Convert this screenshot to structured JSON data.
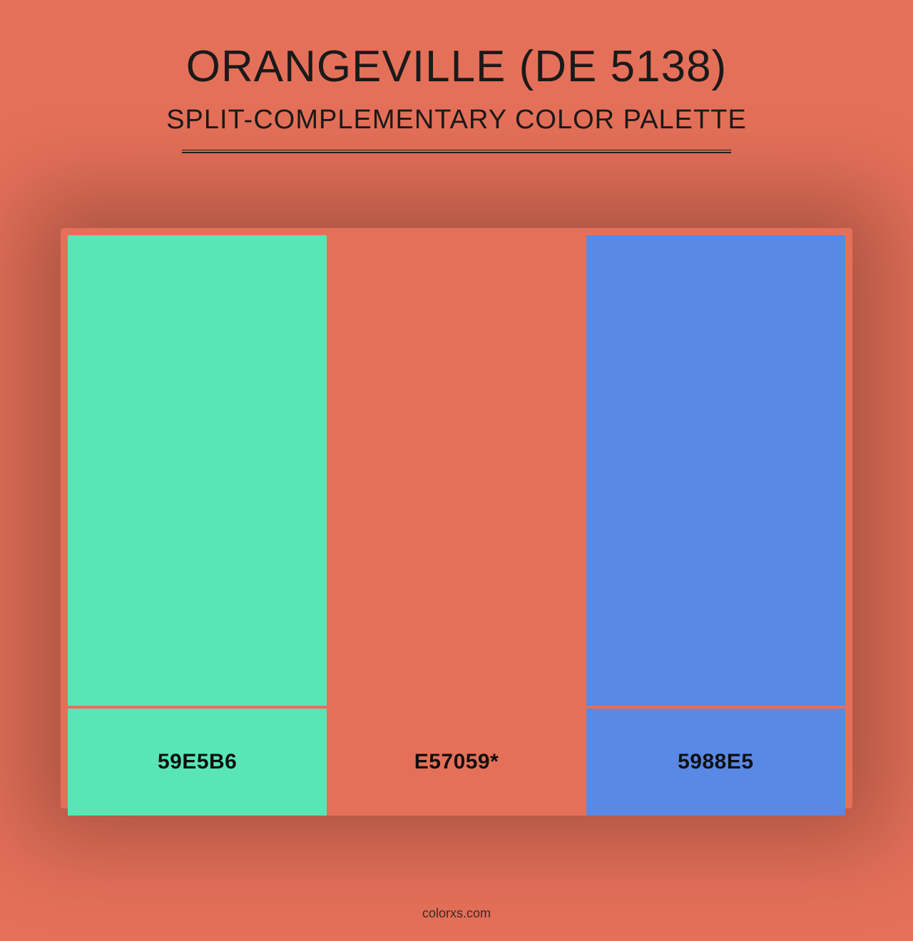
{
  "background_color": "#e57059",
  "text_color": "#1a1a1a",
  "divider_color": "#222222",
  "footer_color": "#3a2a24",
  "title": "ORANGEVILLE (DE 5138)",
  "subtitle": "SPLIT-COMPLEMENTARY COLOR PALETTE",
  "footer": "colorxs.com",
  "palette": {
    "swatch_gap_color": "#e57059",
    "swatches": [
      {
        "color": "#59e5b6",
        "label": "59E5B6",
        "label_color": "#101010"
      },
      {
        "color": "#e57059",
        "label": "E57059*",
        "label_color": "#101010"
      },
      {
        "color": "#5988e5",
        "label": "5988E5",
        "label_color": "#101010"
      }
    ]
  }
}
